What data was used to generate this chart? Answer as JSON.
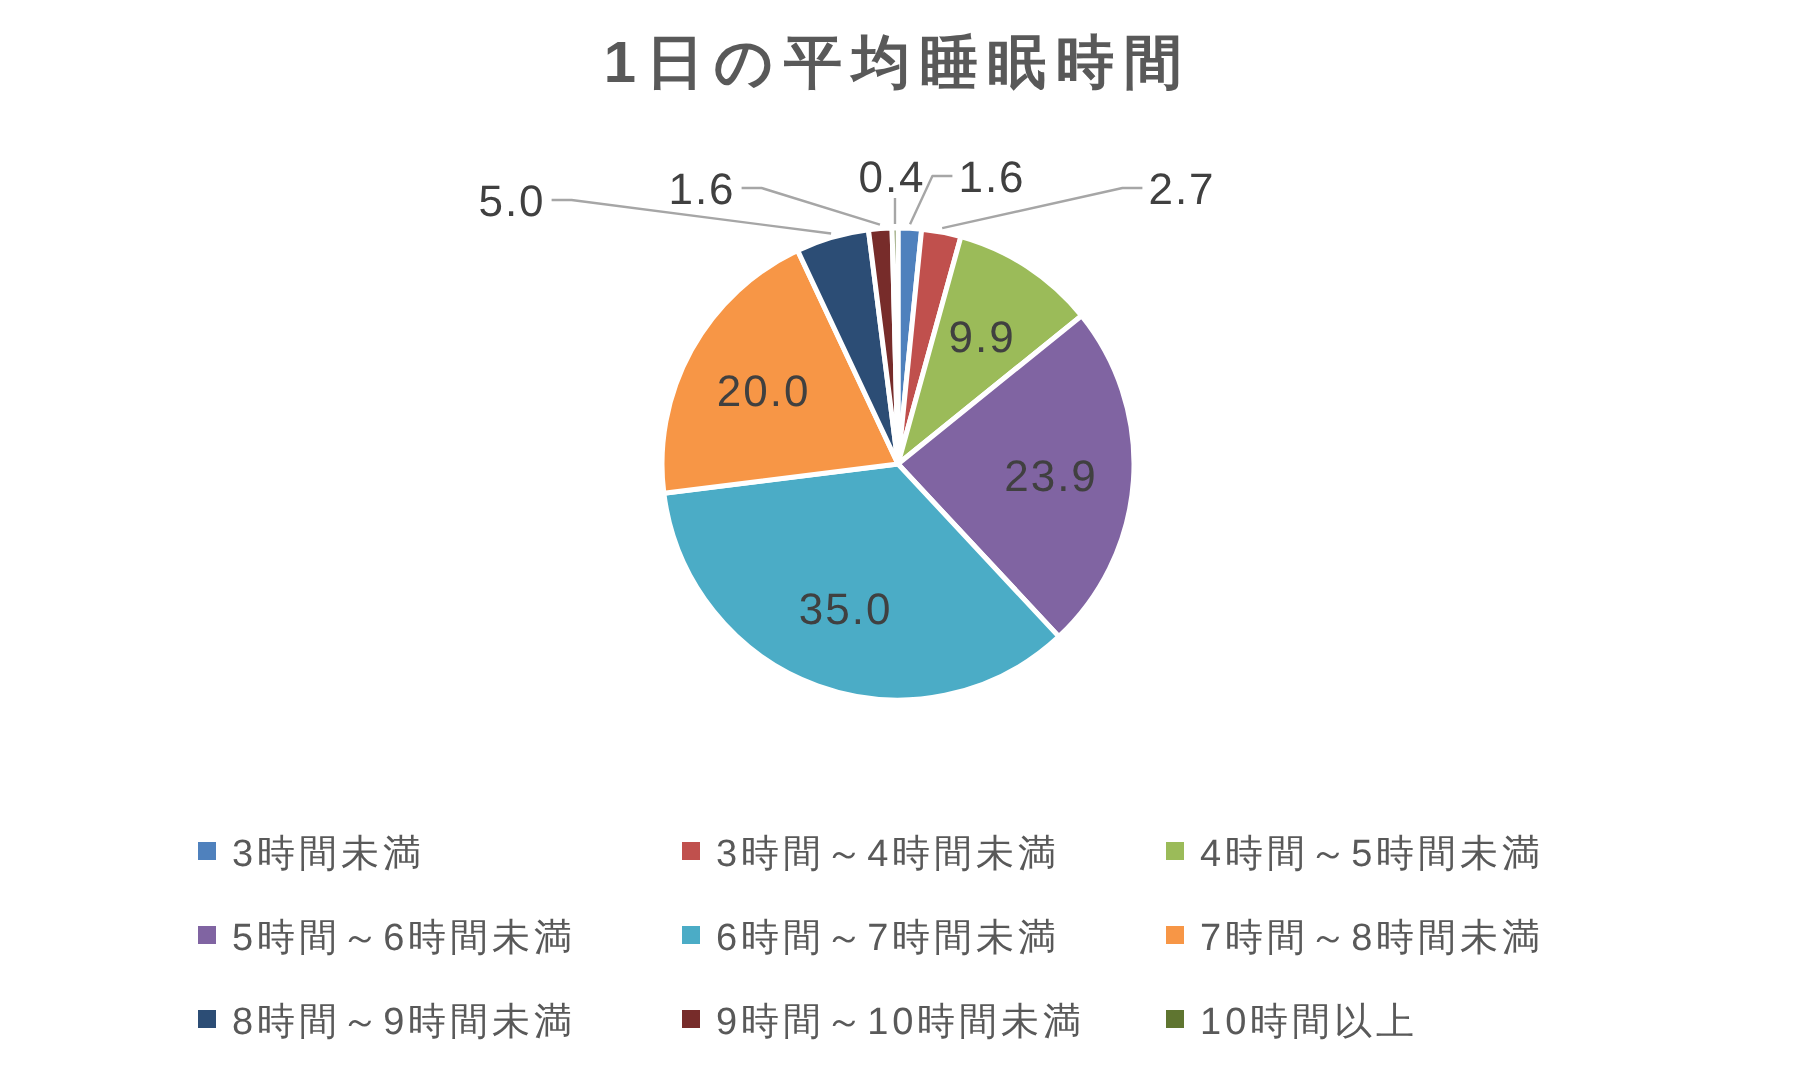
{
  "chart_data": {
    "type": "pie",
    "title": "1日の平均睡眠時間",
    "categories": [
      "3時間未満",
      "3時間～4時間未満",
      "4時間～5時間未満",
      "5時間～6時間未満",
      "6時間～7時間未満",
      "7時間～8時間未満",
      "8時間～9時間未満",
      "9時間～10時間未満",
      "10時間以上"
    ],
    "values": [
      1.6,
      2.7,
      9.9,
      23.9,
      35.0,
      20.0,
      5.0,
      1.6,
      0.4
    ],
    "value_labels": [
      "1.6",
      "2.7",
      "9.9",
      "23.9",
      "35.0",
      "20.0",
      "5.0",
      "1.6",
      "0.4"
    ],
    "colors": [
      "#4f81bd",
      "#c0504d",
      "#9bbb59",
      "#8064a2",
      "#4bacc6",
      "#f79646",
      "#2c4d75",
      "#772c2a",
      "#5f7530"
    ],
    "legend": "bottom"
  }
}
